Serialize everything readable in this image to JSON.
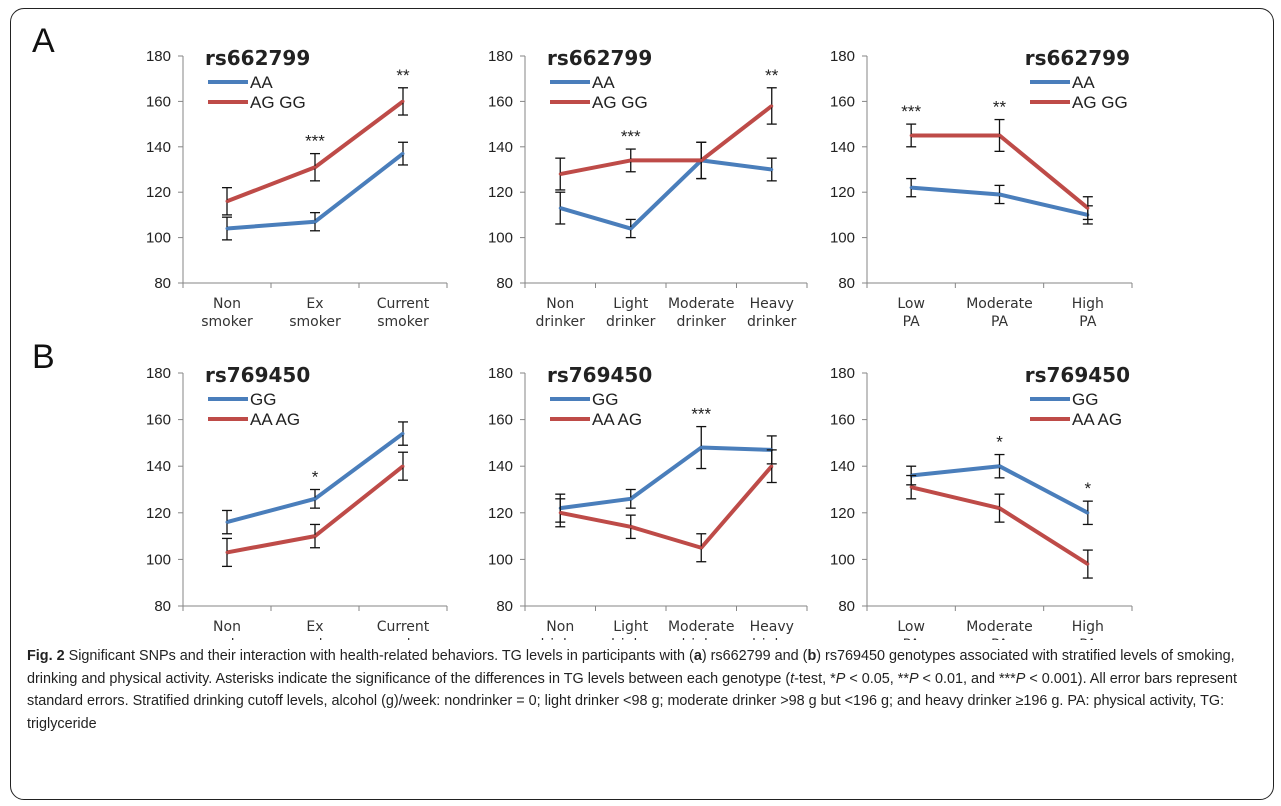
{
  "panels": [
    {
      "letter": "A"
    },
    {
      "letter": "B"
    }
  ],
  "chart_data": [
    {
      "type": "line",
      "row": 0,
      "col": 0,
      "title": "rs662799",
      "categories": [
        [
          "Non",
          "smoker"
        ],
        [
          "Ex",
          "smoker"
        ],
        [
          "Current",
          "smoker"
        ]
      ],
      "ylim": [
        80,
        180
      ],
      "yticks": [
        80,
        100,
        120,
        140,
        160,
        180
      ],
      "legend_position": "top-left",
      "series": [
        {
          "name": "AA",
          "color": "#4a7ebb",
          "values": [
            104,
            107,
            137
          ],
          "errors": [
            5,
            4,
            5
          ]
        },
        {
          "name": "AG GG",
          "color": "#be4b48",
          "values": [
            116,
            131,
            160
          ],
          "errors": [
            6,
            6,
            6
          ]
        }
      ],
      "annotations": [
        {
          "index": 1,
          "text": "***"
        },
        {
          "index": 2,
          "text": "**"
        }
      ]
    },
    {
      "type": "line",
      "row": 0,
      "col": 1,
      "title": "rs662799",
      "categories": [
        [
          "Non",
          "drinker"
        ],
        [
          "Light",
          "drinker"
        ],
        [
          "Moderate",
          "drinker"
        ],
        [
          "Heavy",
          "drinker"
        ]
      ],
      "ylim": [
        80,
        180
      ],
      "yticks": [
        80,
        100,
        120,
        140,
        160,
        180
      ],
      "legend_position": "top-left",
      "series": [
        {
          "name": "AA",
          "color": "#4a7ebb",
          "values": [
            113,
            104,
            134,
            130
          ],
          "errors": [
            7,
            4,
            8,
            5
          ]
        },
        {
          "name": "AG GG",
          "color": "#be4b48",
          "values": [
            128,
            134,
            134,
            158
          ],
          "errors": [
            7,
            5,
            8,
            8
          ]
        }
      ],
      "annotations": [
        {
          "index": 1,
          "text": "***"
        },
        {
          "index": 3,
          "text": "**"
        }
      ]
    },
    {
      "type": "line",
      "row": 0,
      "col": 2,
      "title": "rs662799",
      "categories": [
        [
          "Low",
          "PA"
        ],
        [
          "Moderate",
          "PA"
        ],
        [
          "High",
          "PA"
        ]
      ],
      "ylim": [
        80,
        180
      ],
      "yticks": [
        80,
        100,
        120,
        140,
        160,
        180
      ],
      "legend_position": "top-right",
      "series": [
        {
          "name": "AA",
          "color": "#4a7ebb",
          "values": [
            122,
            119,
            110
          ],
          "errors": [
            4,
            4,
            4
          ]
        },
        {
          "name": "AG GG",
          "color": "#be4b48",
          "values": [
            145,
            145,
            113
          ],
          "errors": [
            5,
            7,
            5
          ]
        }
      ],
      "annotations": [
        {
          "index": 0,
          "text": "***"
        },
        {
          "index": 1,
          "text": "**"
        }
      ]
    },
    {
      "type": "line",
      "row": 1,
      "col": 0,
      "title": "rs769450",
      "categories": [
        [
          "Non",
          "smoker"
        ],
        [
          "Ex",
          "smoker"
        ],
        [
          "Current",
          "smoker"
        ]
      ],
      "ylim": [
        80,
        180
      ],
      "yticks": [
        80,
        100,
        120,
        140,
        160,
        180
      ],
      "legend_position": "top-left",
      "series": [
        {
          "name": "GG",
          "color": "#4a7ebb",
          "values": [
            116,
            126,
            154
          ],
          "errors": [
            5,
            4,
            5
          ]
        },
        {
          "name": "AA AG",
          "color": "#be4b48",
          "values": [
            103,
            110,
            140
          ],
          "errors": [
            6,
            5,
            6
          ]
        }
      ],
      "annotations": [
        {
          "index": 1,
          "text": "*"
        }
      ]
    },
    {
      "type": "line",
      "row": 1,
      "col": 1,
      "title": "rs769450",
      "categories": [
        [
          "Non",
          "drinker"
        ],
        [
          "Light",
          "drinker"
        ],
        [
          "Moderate",
          "drinker"
        ],
        [
          "Heavy",
          "drinker"
        ]
      ],
      "ylim": [
        80,
        180
      ],
      "yticks": [
        80,
        100,
        120,
        140,
        160,
        180
      ],
      "legend_position": "top-left",
      "series": [
        {
          "name": "GG",
          "color": "#4a7ebb",
          "values": [
            122,
            126,
            148,
            147
          ],
          "errors": [
            6,
            4,
            9,
            6
          ]
        },
        {
          "name": "AA AG",
          "color": "#be4b48",
          "values": [
            120,
            114,
            105,
            140
          ],
          "errors": [
            6,
            5,
            6,
            7
          ]
        }
      ],
      "annotations": [
        {
          "index": 2,
          "text": "***"
        }
      ]
    },
    {
      "type": "line",
      "row": 1,
      "col": 2,
      "title": "rs769450",
      "categories": [
        [
          "Low",
          "PA"
        ],
        [
          "Moderate",
          "PA"
        ],
        [
          "High",
          "PA"
        ]
      ],
      "ylim": [
        80,
        180
      ],
      "yticks": [
        80,
        100,
        120,
        140,
        160,
        180
      ],
      "legend_position": "top-right",
      "series": [
        {
          "name": "GG",
          "color": "#4a7ebb",
          "values": [
            136,
            140,
            120
          ],
          "errors": [
            4,
            5,
            5
          ]
        },
        {
          "name": "AA AG",
          "color": "#be4b48",
          "values": [
            131,
            122,
            98
          ],
          "errors": [
            5,
            6,
            6
          ]
        }
      ],
      "annotations": [
        {
          "index": 1,
          "text": "*"
        },
        {
          "index": 2,
          "text": "*"
        }
      ]
    }
  ],
  "caption": {
    "fig_label": "Fig. 2",
    "t1": " Significant SNPs and their interaction with health-related behaviors. TG levels in participants with (",
    "a": "a",
    "t2": ") rs662799 and (",
    "b": "b",
    "t3": ") rs769450 genotypes associated with stratified levels of smoking, drinking and physical activity. Asterisks indicate the significance of the differences in TG levels between each genotype (",
    "t_italic": "t",
    "t4": "-test, *",
    "p1": "P",
    "t5": " < 0.05, **",
    "p2": "P",
    "t6": " < 0.01, and ***",
    "p3": "P",
    "t7": " < 0.001). All error bars represent standard errors. Stratified drinking cutoff levels, alcohol (g)/week: nondrinker = 0; light drinker <98 g; moderate drinker >98 g but <196 g; and heavy drinker ≥196 g. PA: physical activity, TG: triglyceride"
  }
}
